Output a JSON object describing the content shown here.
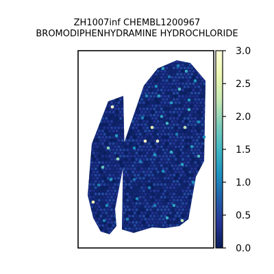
{
  "chart_data": {
    "type": "scatter",
    "title_lines": [
      "ZH1007inf CHEMBL1200967",
      "BROMODIPHENHYDRAMINE HYDROCHLORIDE"
    ],
    "colorbar": {
      "colormap": "YlGnBu",
      "min": 0.0,
      "max": 3.0,
      "tick_values": [
        0.0,
        0.5,
        1.0,
        1.5,
        2.0,
        2.5,
        3.0
      ],
      "tick_labels": [
        "0.0",
        "0.5",
        "1.0",
        "1.5",
        "2.0",
        "2.5",
        "3.0"
      ]
    },
    "axes": {
      "frame": true,
      "grid": false,
      "x_ticks": false,
      "y_ticks": false
    }
  }
}
